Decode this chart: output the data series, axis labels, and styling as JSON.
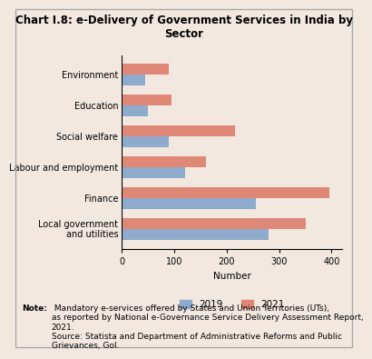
{
  "title": "Chart I.8: e-Delivery of Government Services in India by\nSector",
  "categories": [
    "Environment",
    "Education",
    "Social welfare",
    "Labour and employment",
    "Finance",
    "Local government\nand utilities"
  ],
  "values_2019": [
    45,
    50,
    90,
    120,
    255,
    280
  ],
  "values_2021": [
    90,
    95,
    215,
    160,
    395,
    350
  ],
  "color_2019": "#8eaacc",
  "color_2021": "#e08878",
  "xlabel": "Number",
  "xlim": [
    0,
    420
  ],
  "xticks": [
    0,
    100,
    200,
    300,
    400
  ],
  "background_color": "#f2e8e0",
  "legend_2019": "2019",
  "legend_2021": "2021",
  "note_bold": "Note:",
  "note_text": " Mandatory e-services offered by States and Union Territories (UTs),\nas reported by National e-Governance Service Delivery Assessment Report,\n2021.\nSource: Statista and Department of Administrative Reforms and Public\nGrievances, GoI.",
  "bar_height": 0.35,
  "title_fontsize": 8.5,
  "axis_fontsize": 7.5,
  "tick_fontsize": 7,
  "note_fontsize": 6.5
}
